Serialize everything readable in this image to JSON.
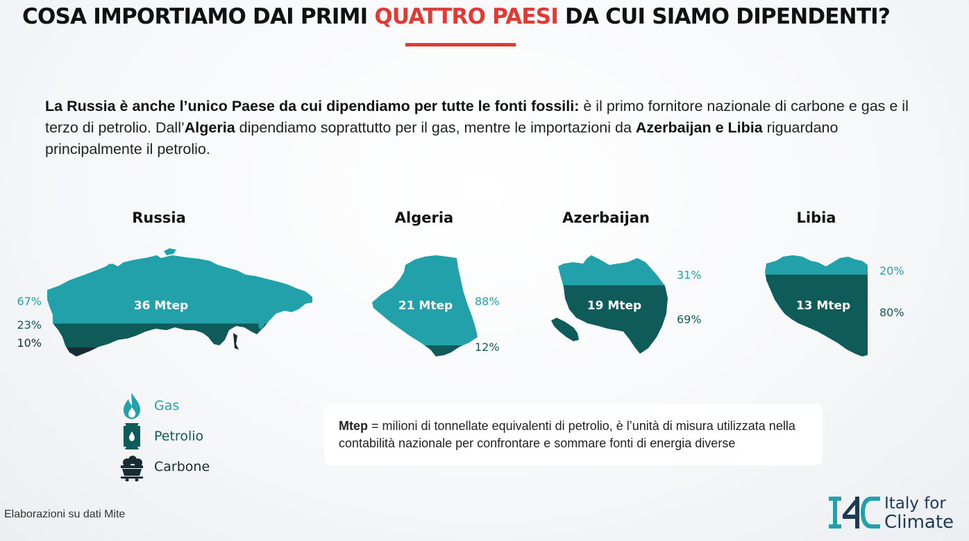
{
  "header": {
    "title_before": "COSA IMPORTIAMO DAI PRIMI ",
    "title_highlight": "QUATTRO PAESI",
    "title_after": " DA CUI SIAMO DIPENDENTI?"
  },
  "intro": {
    "p1_bold": "La Russia è anche l’unico Paese da cui dipendiamo per tutte le fonti fossili:",
    "p1_rest": " è il primo fornitore nazionale di carbone e gas e il terzo di petrolio. Dall’",
    "p2_bold": "Algeria",
    "p2_rest": " dipendiamo soprattutto per il gas, mentre le importazioni da ",
    "p3_bold": "Azerbaijan e Libia",
    "p3_rest": " riguardano principalmente il petrolio."
  },
  "colors": {
    "gas": "#22a1ab",
    "petrolio": "#0e5b5a",
    "carbone": "#172b33",
    "accent": "#e03a34"
  },
  "chart_data": {
    "type": "bar",
    "stacked": true,
    "unit": "%",
    "categories": [
      "Russia",
      "Algeria",
      "Azerbaijan",
      "Libia"
    ],
    "totals": [
      "36 Mtep",
      "21 Mtep",
      "19 Mtep",
      "13 Mtep"
    ],
    "total_values_mtep": [
      36,
      21,
      19,
      13
    ],
    "series": [
      {
        "name": "Gas",
        "values": [
          67,
          88,
          31,
          20
        ]
      },
      {
        "name": "Petrolio",
        "values": [
          23,
          12,
          69,
          80
        ]
      },
      {
        "name": "Carbone",
        "values": [
          10,
          0,
          0,
          0
        ]
      }
    ],
    "labels": [
      [
        "67%",
        "23%",
        "10%"
      ],
      [
        "88%",
        "12%"
      ],
      [
        "31%",
        "69%"
      ],
      [
        "20%",
        "80%"
      ]
    ]
  },
  "legend": {
    "items": [
      {
        "label": "Gas",
        "icon": "flame-icon"
      },
      {
        "label": "Petrolio",
        "icon": "oil-barrel-icon"
      },
      {
        "label": "Carbone",
        "icon": "coal-cart-icon"
      }
    ]
  },
  "note": {
    "bold": "Mtep",
    "rest": " = milioni di tonnellate equivalenti di petrolio, è l’unità di misura utilizzata nella contabilità nazionale per confrontare e sommare fonti di energia diverse"
  },
  "footer": {
    "source": "Elaborazioni su dati Mite"
  },
  "logo": {
    "line1": "Italy for",
    "line2": "Climate"
  }
}
